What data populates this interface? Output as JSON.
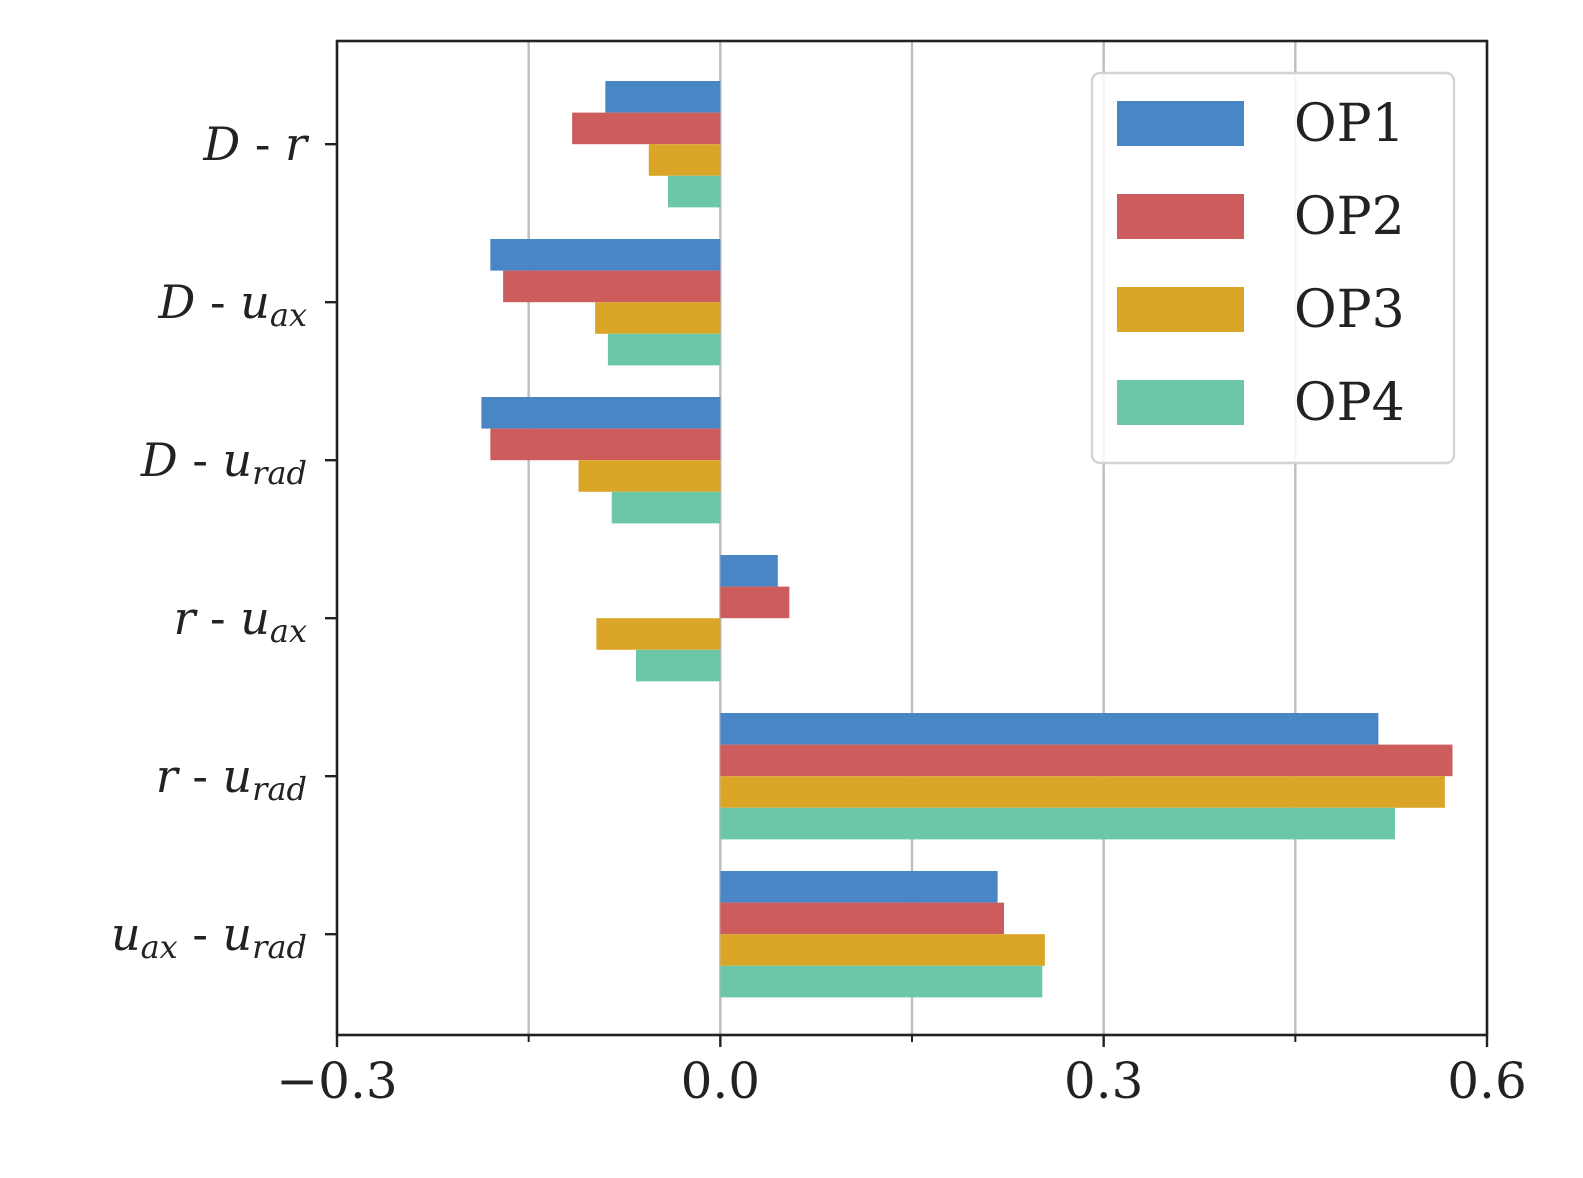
{
  "chart_data": {
    "type": "bar",
    "orientation": "horizontal",
    "title": "",
    "xlabel": "",
    "ylabel": "",
    "xlim": [
      -0.3,
      0.6
    ],
    "xticks": [
      -0.3,
      0.0,
      0.3,
      0.6
    ],
    "xtick_labels": [
      "−0.3",
      "0.0",
      "0.3",
      "0.6"
    ],
    "minor_gridlines": [
      -0.15,
      0.15,
      0.45
    ],
    "grid": true,
    "legend_position": "top-right",
    "categories": [
      {
        "main": "D",
        "sep": " - ",
        "second": "r",
        "second_sub": ""
      },
      {
        "main": "D",
        "sep": " - ",
        "second": "u",
        "second_sub": "ax"
      },
      {
        "main": "D",
        "sep": " - ",
        "second": "u",
        "second_sub": "rad"
      },
      {
        "main": "r",
        "sep": " - ",
        "second": "u",
        "second_sub": "ax"
      },
      {
        "main": "r",
        "sep": " - ",
        "second": "u",
        "second_sub": "rad"
      },
      {
        "main": "u",
        "main_sub": "ax",
        "sep": " - ",
        "second": "u",
        "second_sub": "rad"
      }
    ],
    "series": [
      {
        "name": "OP1",
        "color": "#4a86c5",
        "values": [
          -0.09,
          -0.18,
          -0.187,
          0.045,
          0.515,
          0.217
        ]
      },
      {
        "name": "OP2",
        "color": "#cd5c5c",
        "values": [
          -0.116,
          -0.17,
          -0.18,
          0.054,
          0.573,
          0.222
        ]
      },
      {
        "name": "OP3",
        "color": "#dba628",
        "values": [
          -0.056,
          -0.098,
          -0.111,
          -0.097,
          0.567,
          0.254
        ]
      },
      {
        "name": "OP4",
        "color": "#6cc7a7",
        "values": [
          -0.041,
          -0.088,
          -0.085,
          -0.066,
          0.528,
          0.252
        ]
      }
    ]
  }
}
